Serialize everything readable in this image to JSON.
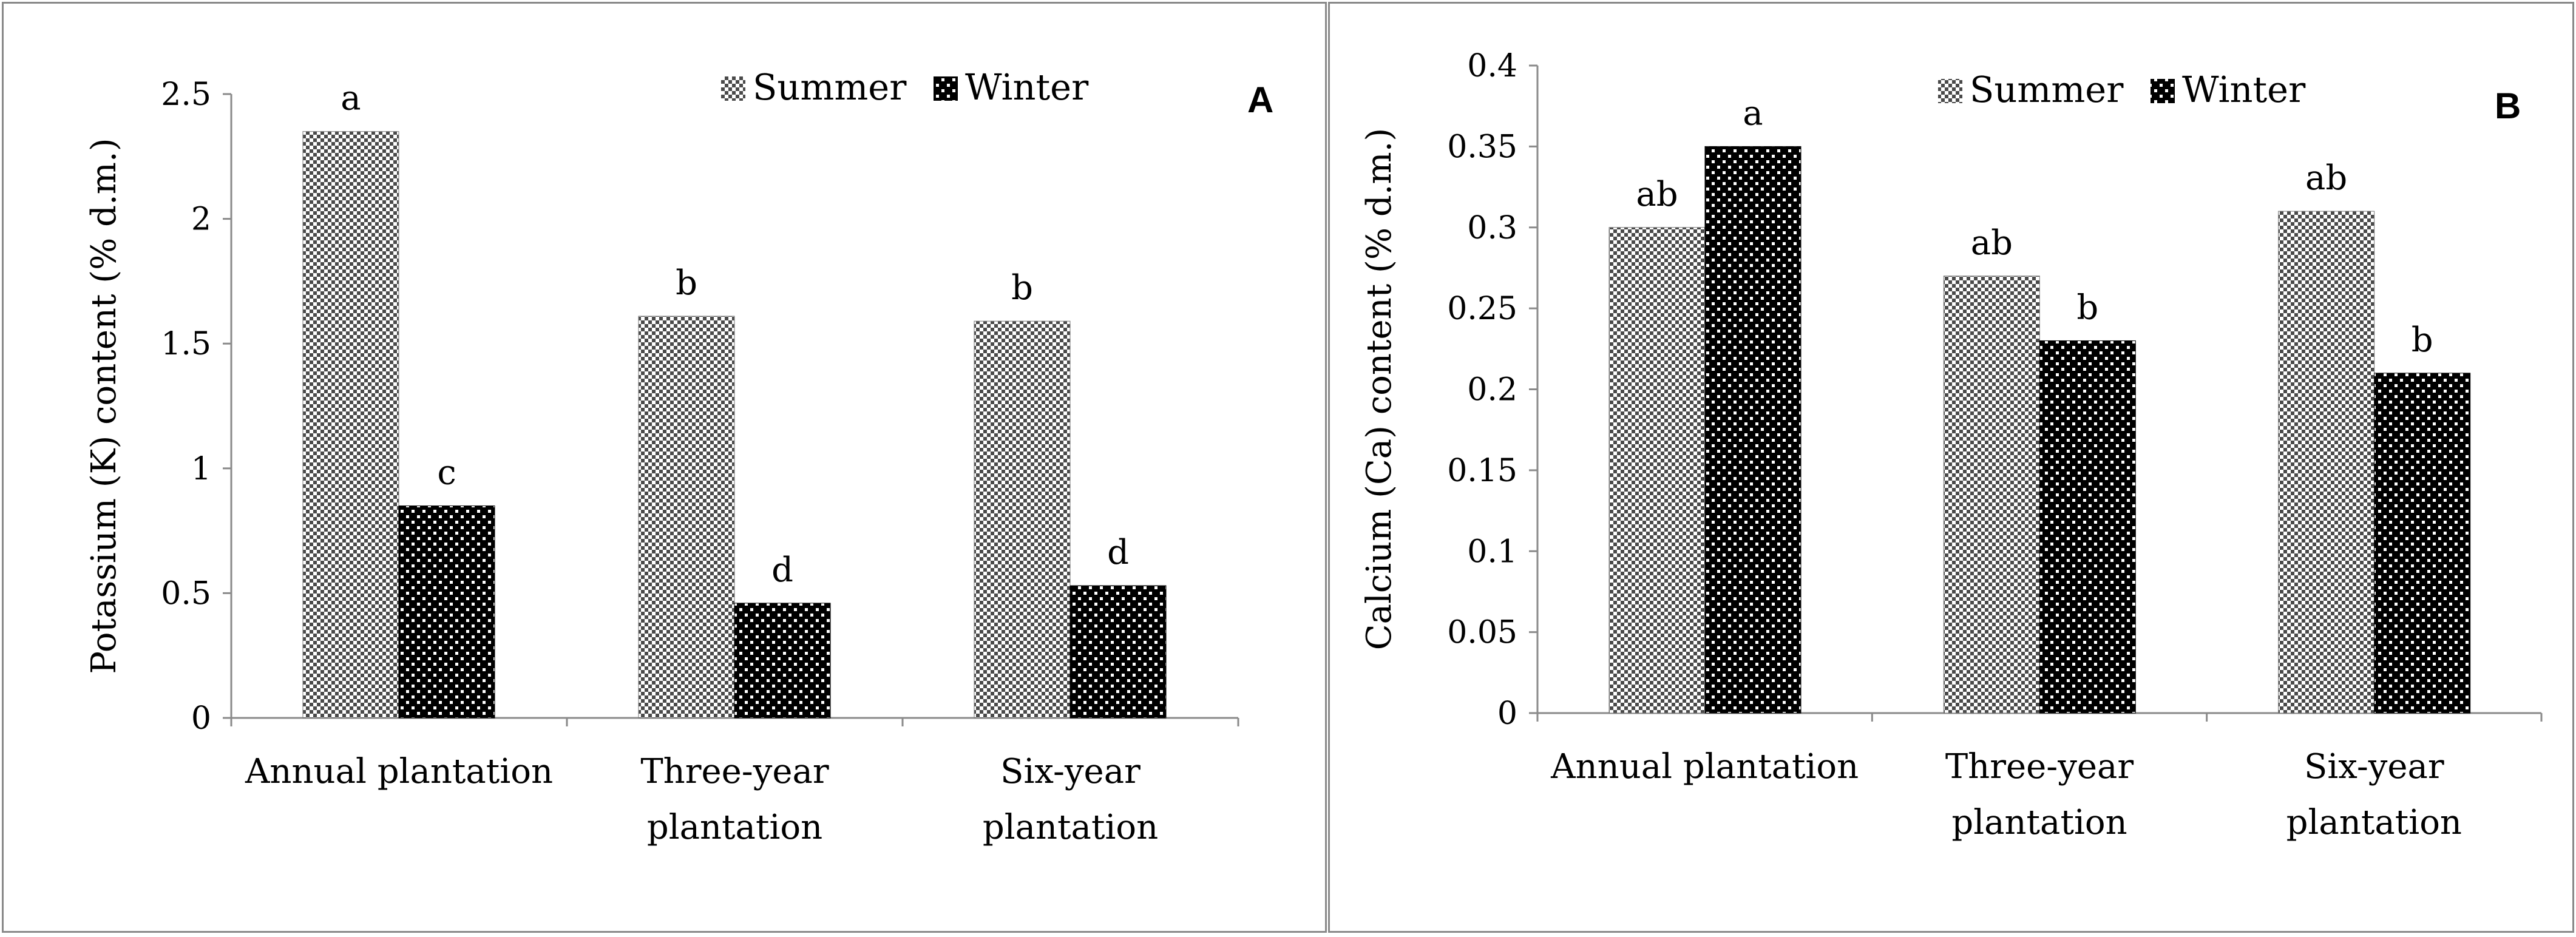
{
  "chart_data": [
    {
      "type": "bar",
      "panel_label": "A",
      "categories": [
        "Annual plantation",
        "Three-year plantation",
        "Six-year plantation"
      ],
      "category_lines": [
        [
          "Annual plantation"
        ],
        [
          "Three-year",
          "plantation"
        ],
        [
          "Six-year",
          "plantation"
        ]
      ],
      "series": [
        {
          "name": "Summer",
          "values": [
            2.35,
            1.61,
            1.59
          ],
          "letters": [
            "a",
            "b",
            "b"
          ]
        },
        {
          "name": "Winter",
          "values": [
            0.85,
            0.46,
            0.53
          ],
          "letters": [
            "c",
            "d",
            "d"
          ]
        }
      ],
      "ylabel": "Potassium (K) content (% d.m.)",
      "ylim": [
        0,
        2.5
      ],
      "yticks": [
        "0",
        "0.5",
        "1",
        "1.5",
        "2",
        "2.5"
      ],
      "legend_position": "top-right"
    },
    {
      "type": "bar",
      "panel_label": "B",
      "categories": [
        "Annual plantation",
        "Three-year plantation",
        "Six-year plantation"
      ],
      "category_lines": [
        [
          "Annual plantation"
        ],
        [
          "Three-year",
          "plantation"
        ],
        [
          "Six-year",
          "plantation"
        ]
      ],
      "series": [
        {
          "name": "Summer",
          "values": [
            0.3,
            0.27,
            0.31
          ],
          "letters": [
            "ab",
            "ab",
            "ab"
          ]
        },
        {
          "name": "Winter",
          "values": [
            0.35,
            0.23,
            0.21
          ],
          "letters": [
            "a",
            "b",
            "b"
          ]
        }
      ],
      "ylabel": "Calcium (Ca) content (% d.m.)",
      "ylim": [
        0,
        0.4
      ],
      "yticks": [
        "0",
        "0.05",
        "0.1",
        "0.15",
        "0.2",
        "0.25",
        "0.3",
        "0.35",
        "0.4"
      ],
      "legend_position": "top-center"
    }
  ]
}
